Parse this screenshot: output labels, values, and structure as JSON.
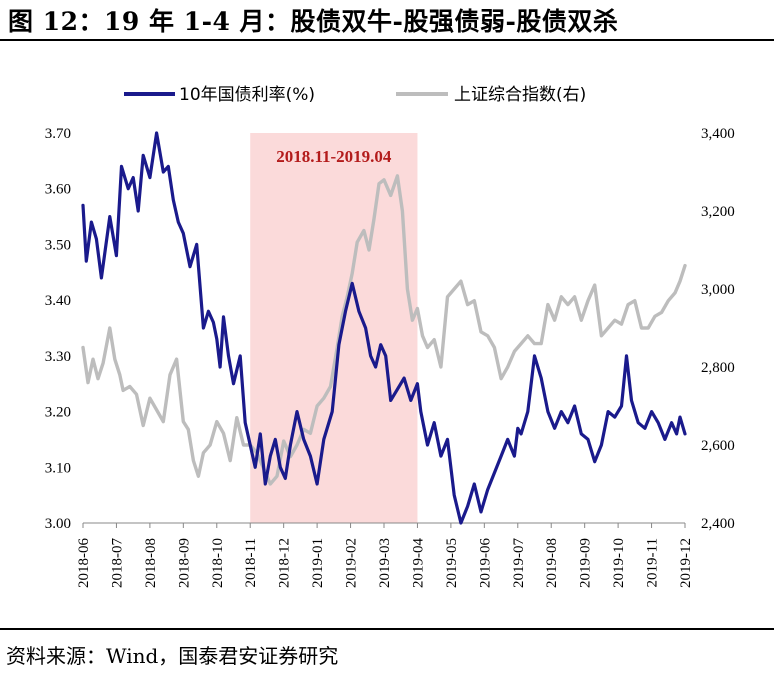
{
  "title": "图 12：19 年 1-4 月：股债双牛-股强债弱-股债双杀",
  "source": "资料来源：Wind，国泰君安证券研究",
  "colors": {
    "bond": "#1a1a8c",
    "index": "#bdbdbd",
    "shade": "#fbdada",
    "annotation": "#b31b1b"
  },
  "chart_data": {
    "type": "line",
    "title": "",
    "legend_position": "top",
    "annotation": {
      "text": "2018.11-2019.04",
      "x_start": "2018-11",
      "x_end": "2019-04"
    },
    "x_ticks": [
      "2018-06",
      "2018-07",
      "2018-08",
      "2018-09",
      "2018-10",
      "2018-11",
      "2018-12",
      "2019-01",
      "2019-02",
      "2019-03",
      "2019-04",
      "2019-05",
      "2019-06",
      "2019-07",
      "2019-08",
      "2019-09",
      "2019-10",
      "2019-11",
      "2019-12"
    ],
    "y_left": {
      "ticks": [
        "3.00",
        "3.10",
        "3.20",
        "3.30",
        "3.40",
        "3.50",
        "3.60",
        "3.70"
      ],
      "ylim": [
        3.0,
        3.7
      ]
    },
    "y_right": {
      "ticks": [
        "2,400",
        "2,600",
        "2,800",
        "3,000",
        "3,200",
        "3,400"
      ],
      "ylim": [
        2400,
        3400
      ]
    },
    "series": [
      {
        "name": "10年国债利率(%)",
        "axis": "left",
        "x": [
          0.0,
          0.1,
          0.25,
          0.4,
          0.55,
          0.8,
          1.0,
          1.15,
          1.35,
          1.5,
          1.65,
          1.8,
          2.0,
          2.2,
          2.4,
          2.55,
          2.7,
          2.85,
          3.0,
          3.2,
          3.4,
          3.6,
          3.75,
          3.9,
          4.0,
          4.1,
          4.2,
          4.35,
          4.5,
          4.7,
          4.85,
          5.0,
          5.15,
          5.3,
          5.45,
          5.6,
          5.75,
          5.9,
          6.05,
          6.2,
          6.4,
          6.6,
          6.8,
          7.0,
          7.2,
          7.45,
          7.65,
          7.85,
          8.05,
          8.25,
          8.45,
          8.6,
          8.75,
          8.9,
          9.05,
          9.2,
          9.4,
          9.6,
          9.8,
          10.0,
          10.1,
          10.3,
          10.5,
          10.7,
          10.9,
          11.1,
          11.3,
          11.5,
          11.7,
          11.9,
          12.1,
          12.3,
          12.5,
          12.7,
          12.9,
          13.0,
          13.1,
          13.3,
          13.5,
          13.7,
          13.9,
          14.1,
          14.3,
          14.5,
          14.7,
          14.9,
          15.1,
          15.3,
          15.5,
          15.7,
          15.9,
          16.1,
          16.25,
          16.4,
          16.6,
          16.8,
          17.0,
          17.2,
          17.4,
          17.6,
          17.75,
          17.85,
          18.0
        ],
        "values": [
          3.57,
          3.47,
          3.54,
          3.51,
          3.44,
          3.55,
          3.48,
          3.64,
          3.6,
          3.62,
          3.56,
          3.66,
          3.62,
          3.7,
          3.63,
          3.64,
          3.58,
          3.54,
          3.52,
          3.46,
          3.5,
          3.35,
          3.38,
          3.36,
          3.33,
          3.28,
          3.37,
          3.3,
          3.25,
          3.3,
          3.18,
          3.14,
          3.1,
          3.16,
          3.07,
          3.12,
          3.15,
          3.1,
          3.08,
          3.14,
          3.2,
          3.15,
          3.12,
          3.07,
          3.15,
          3.2,
          3.32,
          3.38,
          3.43,
          3.38,
          3.35,
          3.3,
          3.28,
          3.32,
          3.3,
          3.22,
          3.24,
          3.26,
          3.22,
          3.25,
          3.2,
          3.14,
          3.18,
          3.12,
          3.15,
          3.05,
          3.0,
          3.03,
          3.07,
          3.02,
          3.06,
          3.09,
          3.12,
          3.15,
          3.12,
          3.17,
          3.16,
          3.2,
          3.3,
          3.26,
          3.2,
          3.17,
          3.2,
          3.18,
          3.21,
          3.16,
          3.15,
          3.11,
          3.14,
          3.2,
          3.19,
          3.21,
          3.3,
          3.22,
          3.18,
          3.17,
          3.2,
          3.18,
          3.15,
          3.18,
          3.16,
          3.19,
          3.16
        ]
      },
      {
        "name": "上证综合指数(右)",
        "axis": "right",
        "x": [
          0.0,
          0.15,
          0.3,
          0.45,
          0.6,
          0.8,
          0.95,
          1.1,
          1.2,
          1.4,
          1.6,
          1.8,
          2.0,
          2.2,
          2.4,
          2.6,
          2.8,
          3.0,
          3.15,
          3.3,
          3.45,
          3.6,
          3.8,
          4.0,
          4.2,
          4.4,
          4.6,
          4.8,
          5.0,
          5.2,
          5.4,
          5.6,
          5.8,
          6.0,
          6.2,
          6.4,
          6.6,
          6.8,
          7.0,
          7.2,
          7.4,
          7.6,
          7.75,
          7.9,
          8.05,
          8.2,
          8.4,
          8.55,
          8.7,
          8.85,
          9.0,
          9.2,
          9.4,
          9.55,
          9.7,
          9.85,
          10.0,
          10.15,
          10.3,
          10.5,
          10.7,
          10.9,
          11.1,
          11.3,
          11.5,
          11.7,
          11.9,
          12.1,
          12.3,
          12.5,
          12.7,
          12.9,
          13.1,
          13.3,
          13.5,
          13.7,
          13.9,
          14.1,
          14.3,
          14.5,
          14.7,
          14.9,
          15.1,
          15.3,
          15.5,
          15.7,
          15.9,
          16.1,
          16.3,
          16.5,
          16.7,
          16.9,
          17.1,
          17.3,
          17.5,
          17.7,
          17.85,
          18.0
        ],
        "values": [
          2850,
          2760,
          2820,
          2770,
          2810,
          2900,
          2820,
          2780,
          2740,
          2750,
          2730,
          2650,
          2720,
          2690,
          2660,
          2780,
          2820,
          2660,
          2640,
          2560,
          2520,
          2580,
          2600,
          2660,
          2630,
          2560,
          2670,
          2600,
          2600,
          2580,
          2540,
          2500,
          2520,
          2610,
          2570,
          2600,
          2640,
          2630,
          2700,
          2720,
          2750,
          2850,
          2930,
          2980,
          3040,
          3120,
          3150,
          3100,
          3180,
          3270,
          3280,
          3240,
          3290,
          3200,
          3000,
          2920,
          2950,
          2880,
          2850,
          2870,
          2800,
          2980,
          3000,
          3020,
          2960,
          2970,
          2890,
          2880,
          2850,
          2770,
          2800,
          2840,
          2860,
          2880,
          2860,
          2860,
          2960,
          2920,
          2980,
          2960,
          2980,
          2920,
          2970,
          3010,
          2880,
          2900,
          2920,
          2910,
          2960,
          2970,
          2900,
          2900,
          2930,
          2940,
          2970,
          2990,
          3020,
          3060
        ]
      }
    ]
  }
}
